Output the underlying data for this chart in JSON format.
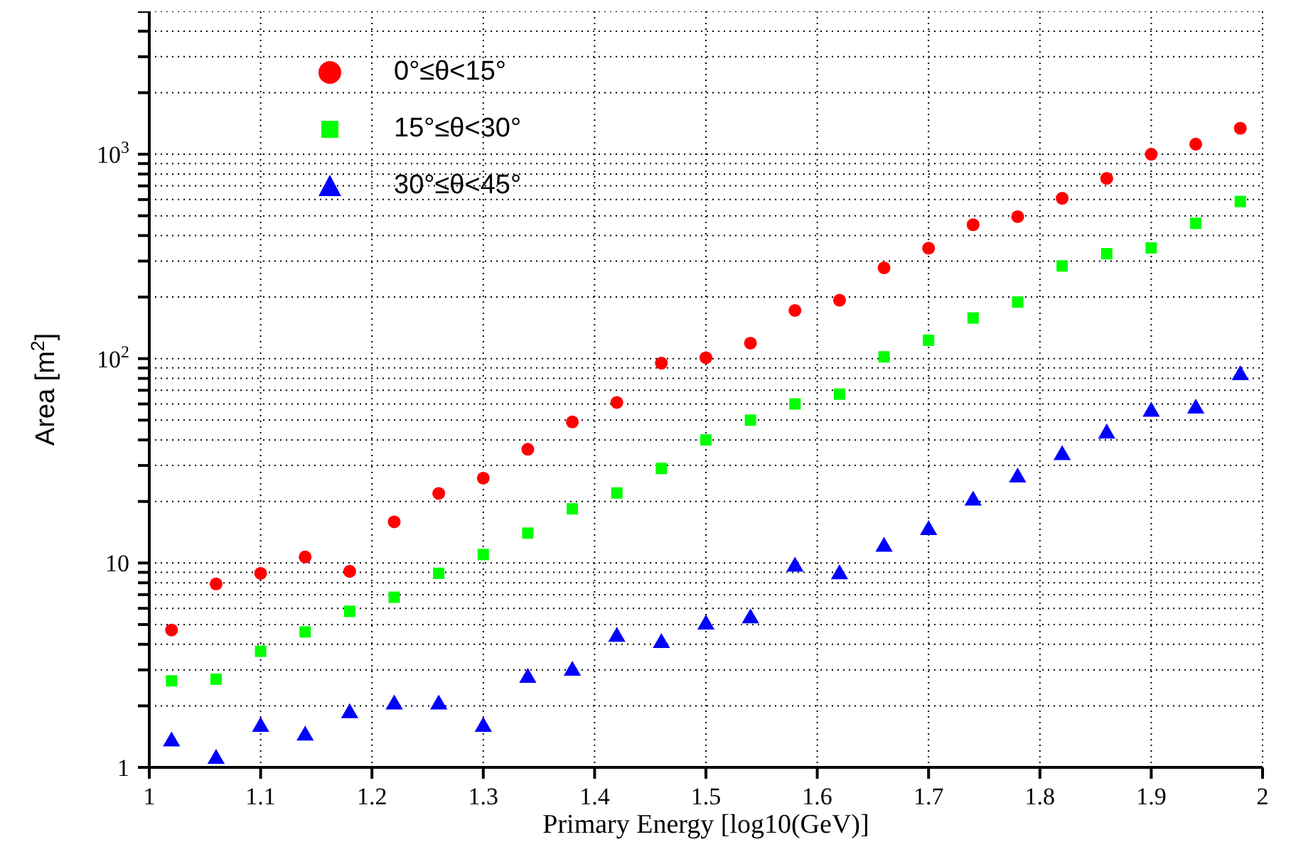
{
  "chart_data": {
    "type": "scatter",
    "xlabel": "Primary Energy [log10(GeV)]",
    "ylabel": "Area [m$^{2}$]",
    "x": [
      1.02,
      1.06,
      1.1,
      1.14,
      1.18,
      1.22,
      1.26,
      1.3,
      1.34,
      1.38,
      1.42,
      1.46,
      1.5,
      1.54,
      1.58,
      1.62,
      1.66,
      1.7,
      1.74,
      1.78,
      1.82,
      1.86,
      1.9,
      1.94,
      1.98
    ],
    "series": [
      {
        "name": "0°≤θ<15°",
        "color": "#ff0000",
        "marker": "circle",
        "values": [
          4.7,
          7.9,
          8.9,
          10.7,
          9.1,
          15.9,
          21.9,
          26,
          36,
          49,
          61,
          95,
          101,
          119,
          172,
          193,
          278,
          347,
          452,
          495,
          609,
          762,
          1000,
          1120,
          1340
        ]
      },
      {
        "name": "15°≤θ<30°",
        "color": "#00ff00",
        "marker": "square",
        "values": [
          2.65,
          2.7,
          3.7,
          4.6,
          5.8,
          6.8,
          8.9,
          11,
          14,
          18.4,
          22,
          29,
          40,
          50,
          60,
          67,
          102,
          123,
          158,
          189,
          284,
          326,
          348,
          459,
          587
        ]
      },
      {
        "name": "30°≤θ<45°",
        "color": "#0000ff",
        "marker": "triangle",
        "values": [
          1.34,
          1.1,
          1.58,
          1.43,
          1.84,
          2.03,
          2.03,
          1.58,
          2.74,
          2.97,
          4.35,
          4.06,
          5.0,
          5.36,
          9.6,
          8.8,
          12,
          14.5,
          20.2,
          26.2,
          33.7,
          43,
          55,
          57,
          83
        ]
      }
    ],
    "log": "y",
    "xlim": [
      1,
      2
    ],
    "xticks": [
      1,
      1.1,
      1.2,
      1.3,
      1.4,
      1.5,
      1.6,
      1.7,
      1.8,
      1.9,
      2
    ],
    "ylim": [
      1,
      5000
    ],
    "yticks": [
      1,
      {
        "value": 2,
        "label": null
      },
      {
        "value": 3,
        "label": null
      },
      {
        "value": 4,
        "label": null
      },
      {
        "value": 5,
        "label": null
      },
      {
        "value": 6,
        "label": null
      },
      {
        "value": 7,
        "label": null
      },
      {
        "value": 8,
        "label": null
      },
      {
        "value": 9,
        "label": null
      },
      10,
      {
        "value": 20,
        "label": null
      },
      {
        "value": 30,
        "label": null
      },
      {
        "value": 40,
        "label": null
      },
      {
        "value": 50,
        "label": null
      },
      {
        "value": 60,
        "label": null
      },
      {
        "value": 70,
        "label": null
      },
      {
        "value": 80,
        "label": null
      },
      {
        "value": 90,
        "label": null
      },
      {
        "value": 100,
        "label": "10$^{2}$"
      },
      {
        "value": 200,
        "label": null
      },
      {
        "value": 300,
        "label": null
      },
      {
        "value": 400,
        "label": null
      },
      {
        "value": 500,
        "label": null
      },
      {
        "value": 600,
        "label": null
      },
      {
        "value": 700,
        "label": null
      },
      {
        "value": 800,
        "label": null
      },
      {
        "value": 900,
        "label": null
      },
      {
        "value": 1000,
        "label": "10$^{3}$"
      },
      {
        "value": 2000,
        "label": null
      },
      {
        "value": 3000,
        "label": null
      },
      {
        "value": 4000,
        "label": null
      },
      {
        "value": 5000,
        "label": null
      }
    ],
    "grid": true,
    "legend": "top left"
  }
}
